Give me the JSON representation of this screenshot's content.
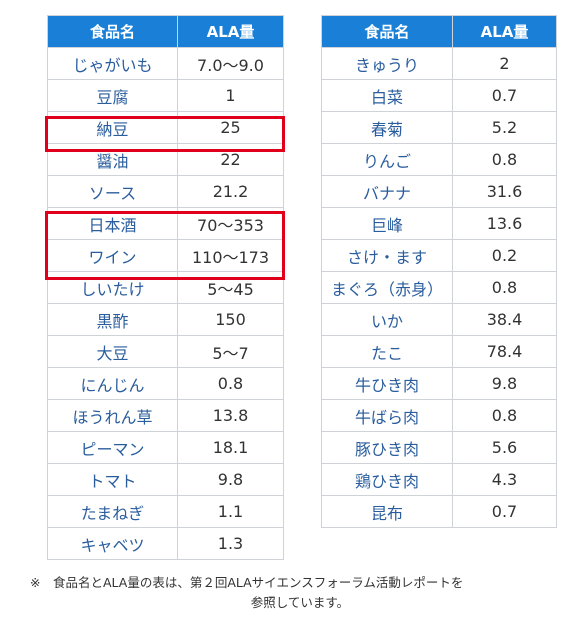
{
  "left_table": {
    "headers": [
      "食品名",
      "ALA量"
    ],
    "rows": [
      [
        "じゃがいも",
        "7.0～9.0"
      ],
      [
        "豆腐",
        "1"
      ],
      [
        "納豆",
        "25"
      ],
      [
        "醤油",
        "22"
      ],
      [
        "ソース",
        "21.2"
      ],
      [
        "日本酒",
        "70～353"
      ],
      [
        "ワイン",
        "110～173"
      ],
      [
        "しいたけ",
        "5～45"
      ],
      [
        "黒酢",
        "150"
      ],
      [
        "大豆",
        "5～7"
      ],
      [
        "にんじん",
        "0.8"
      ],
      [
        "ほうれん草",
        "13.8"
      ],
      [
        "ピーマン",
        "18.1"
      ],
      [
        "トマト",
        "9.8"
      ],
      [
        "たまねぎ",
        "1.1"
      ],
      [
        "キャベツ",
        "1.3"
      ]
    ]
  },
  "right_table": {
    "headers": [
      "食品名",
      "ALA量"
    ],
    "rows": [
      [
        "きゅうり",
        "2"
      ],
      [
        "白菜",
        "0.7"
      ],
      [
        "春菊",
        "5.2"
      ],
      [
        "りんご",
        "0.8"
      ],
      [
        "バナナ",
        "31.6"
      ],
      [
        "巨峰",
        "13.6"
      ],
      [
        "さけ・ます",
        "0.2"
      ],
      [
        "まぐろ（赤身）",
        "0.8"
      ],
      [
        "いか",
        "38.4"
      ],
      [
        "たこ",
        "78.4"
      ],
      [
        "牛ひき肉",
        "9.8"
      ],
      [
        "牛ばら肉",
        "0.8"
      ],
      [
        "豚ひき肉",
        "5.6"
      ],
      [
        "鶏ひき肉",
        "4.3"
      ],
      [
        "昆布",
        "0.7"
      ]
    ]
  },
  "highlight_color": "#e0001b",
  "header_color": "#1a7fd6",
  "note": {
    "line1": "※　食品名とALA量の表は、第２回ALAサイエンスフォーラム活動レポートを",
    "line2": "参照しています。"
  }
}
